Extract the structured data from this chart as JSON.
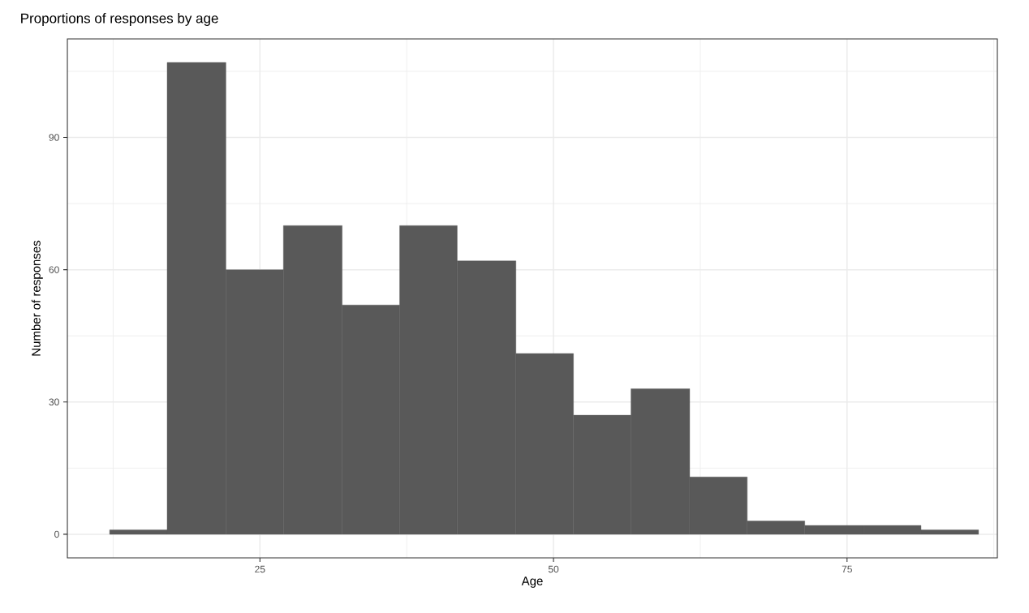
{
  "chart_data": {
    "type": "histogram",
    "title": "Proportions of responses by age",
    "xlabel": "Age",
    "ylabel": "Number of responses",
    "bins": [
      12.2,
      17.1,
      22.1,
      27.0,
      32.0,
      36.9,
      41.8,
      46.8,
      51.7,
      56.6,
      61.6,
      66.5,
      71.4,
      76.4,
      81.3,
      86.2
    ],
    "values": [
      1,
      107,
      60,
      70,
      52,
      70,
      62,
      41,
      27,
      33,
      13,
      3,
      2,
      2,
      1
    ],
    "color": "#595959",
    "xlim": [
      8.6,
      87.8
    ],
    "ylim": [
      -5.35,
      112.35
    ],
    "xticks": [
      25,
      50,
      75
    ],
    "yticks": [
      0,
      30,
      60,
      90
    ],
    "grid": true
  }
}
